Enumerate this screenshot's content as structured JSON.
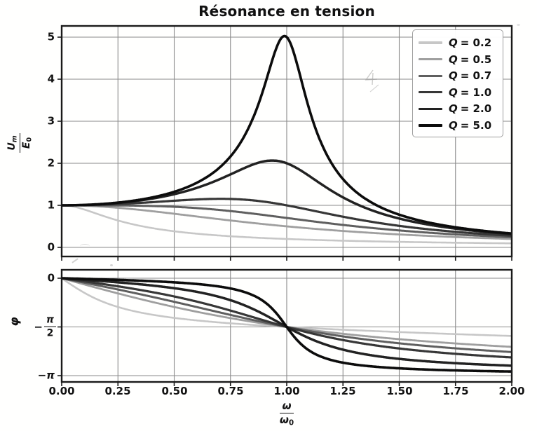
{
  "chart_data": {
    "type": "line",
    "title": "Résonance en tension",
    "x_axis": {
      "label": "ω/ω0",
      "label_parts": {
        "num": "ω",
        "den_base": "ω",
        "den_sub": "0"
      },
      "range": [
        0,
        2
      ],
      "ticks": [
        "0.00",
        "0.25",
        "0.50",
        "0.75",
        "1.00",
        "1.25",
        "1.50",
        "1.75",
        "2.00"
      ],
      "tick_values": [
        0,
        0.25,
        0.5,
        0.75,
        1,
        1.25,
        1.5,
        1.75,
        2
      ],
      "shared_between_subplots": true
    },
    "subplots": [
      {
        "id": "amplitude",
        "ylabel": "Um/E0",
        "ylabel_parts": {
          "num_base": "U",
          "num_sub": "m",
          "den_base": "E",
          "den_sub": "0"
        },
        "yticks": [
          "0",
          "1",
          "2",
          "3",
          "4",
          "5"
        ],
        "ytick_values": [
          0,
          1,
          2,
          3,
          4,
          5
        ],
        "ylim": [
          -0.22,
          5.27
        ],
        "grid": true,
        "formula": "Um/E0 = 1 / sqrt((1 - x²)² + (x/Q)²)  with x = ω/ω0"
      },
      {
        "id": "phase",
        "ylabel": "φ",
        "yticks": [
          "0",
          "−π/2",
          "−π"
        ],
        "ytick_parts": {
          "zero": "0",
          "minus": "−",
          "pi": "π",
          "two": "2",
          "minus_pi": "−π"
        },
        "ytick_values_rad": [
          0,
          -1.5708,
          -3.1416
        ],
        "ylim_rad": [
          -3.35,
          0.25
        ],
        "grid": true,
        "formula": "φ = −atan2(x/Q, 1 − x²)  with x = ω/ω0"
      }
    ],
    "x_samples": [
      0,
      0.25,
      0.5,
      0.75,
      1,
      1.25,
      1.5,
      1.75,
      2
    ],
    "series": [
      {
        "label": "Q = 0.2",
        "symbol": "Q",
        "eq": "= 0.2",
        "Q": 0.2,
        "color": "#c6c6c6",
        "line_width": 2.6,
        "amplitude_values": [
          1,
          0.64,
          0.383,
          0.265,
          0.2,
          0.159,
          0.132,
          0.111,
          0.096
        ],
        "phase_over_pi": [
          0,
          -0.295,
          -0.407,
          -0.463,
          -0.5,
          -0.529,
          -0.553,
          -0.574,
          -0.593
        ]
      },
      {
        "label": "Q = 0.5",
        "symbol": "Q",
        "eq": "= 0.5",
        "Q": 0.5,
        "color": "#9e9e9e",
        "line_width": 2.8,
        "amplitude_values": [
          1,
          0.941,
          0.8,
          0.64,
          0.5,
          0.39,
          0.308,
          0.246,
          0.2
        ],
        "phase_over_pi": [
          0,
          -0.156,
          -0.295,
          -0.41,
          -0.5,
          -0.57,
          -0.626,
          -0.669,
          -0.705
        ]
      },
      {
        "label": "Q = 0.7",
        "symbol": "Q",
        "eq": "= 0.7",
        "Q": 0.7,
        "color": "#606060",
        "line_width": 3.0,
        "amplitude_values": [
          1,
          0.997,
          0.966,
          0.864,
          0.7,
          0.534,
          0.403,
          0.309,
          0.241
        ],
        "phase_over_pi": [
          0,
          -0.116,
          -0.242,
          -0.376,
          -0.5,
          -0.597,
          -0.668,
          -0.72,
          -0.758
        ]
      },
      {
        "label": "Q = 1.0",
        "symbol": "Q",
        "eq": "= 1.0",
        "Q": 1.0,
        "color": "#383838",
        "line_width": 3.2,
        "amplitude_peak": {
          "x": 0.71,
          "y": 1.15
        },
        "amplitude_values": [
          1,
          1.031,
          1.109,
          1.152,
          1.0,
          0.73,
          0.512,
          0.37,
          0.277
        ],
        "phase_over_pi": [
          0,
          -0.083,
          -0.187,
          -0.332,
          -0.5,
          -0.635,
          -0.721,
          -0.776,
          -0.813
        ]
      },
      {
        "label": "Q = 2.0",
        "symbol": "Q",
        "eq": "= 2.0",
        "Q": 2.0,
        "color": "#242424",
        "line_width": 3.5,
        "amplitude_peak": {
          "x": 0.94,
          "y": 2.07
        },
        "amplitude_values": [
          1,
          1.057,
          1.265,
          1.735,
          2.0,
          1.189,
          0.686,
          0.446,
          0.316
        ],
        "phase_over_pi": [
          0,
          -0.042,
          -0.102,
          -0.226,
          -0.5,
          -0.733,
          -0.828,
          -0.872,
          -0.898
        ]
      },
      {
        "label": "Q = 5.0",
        "symbol": "Q",
        "eq": "= 5.0",
        "Q": 5.0,
        "color": "#0e0e0e",
        "line_width": 3.6,
        "amplitude_peak": {
          "x": 0.99,
          "y": 5.03
        },
        "amplitude_values": [
          1,
          1.065,
          1.322,
          2.162,
          5.0,
          1.625,
          0.778,
          0.478,
          0.33
        ],
        "phase_over_pi": [
          0,
          -0.017,
          -0.042,
          -0.105,
          -0.5,
          -0.867,
          -0.925,
          -0.946,
          -0.958
        ]
      }
    ],
    "legend": {
      "location": "upper right"
    },
    "style": {
      "spine_color": "#1c1c1c",
      "grid_color": "#8a8a8a",
      "background": "#fdfdfc"
    }
  }
}
